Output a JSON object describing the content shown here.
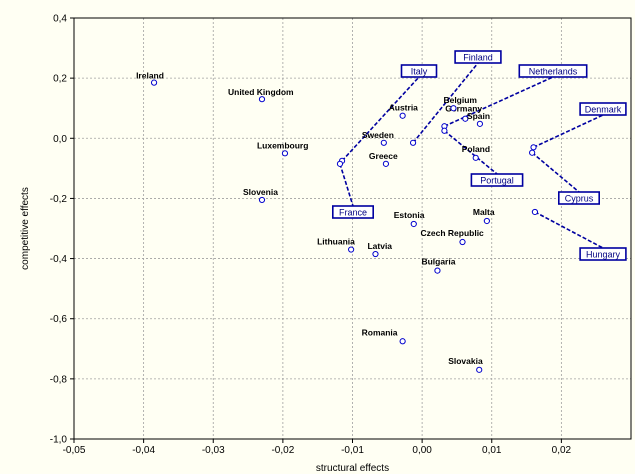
{
  "chart_data": {
    "type": "scatter",
    "xlabel": "structural effects",
    "ylabel": "competitive effects",
    "xlim": [
      -0.05,
      0.03
    ],
    "ylim": [
      -1.0,
      0.4
    ],
    "x_ticks": [
      "-0,05",
      "-0,04",
      "-0,03",
      "-0,02",
      "-0,01",
      "0,00",
      "0,01",
      "0,02"
    ],
    "y_ticks": [
      "0,4",
      "0,2",
      "0,0",
      "-0,2",
      "-0,4",
      "-0,6",
      "-0,8",
      "-1,0"
    ],
    "grid": true,
    "colors": {
      "point": "#0000cc",
      "callout": "#0000a0",
      "background": "#fffff3"
    },
    "points": [
      {
        "label": "Ireland",
        "x": -0.0385,
        "y": 0.185
      },
      {
        "label": "United Kingdom",
        "x": -0.023,
        "y": 0.13
      },
      {
        "label": "Luxembourg",
        "x": -0.0197,
        "y": -0.05
      },
      {
        "label": "Slovenia",
        "x": -0.023,
        "y": -0.205
      },
      {
        "label": "Austria",
        "x": -0.0028,
        "y": 0.075
      },
      {
        "label": "Sweden",
        "x": -0.0055,
        "y": -0.015
      },
      {
        "label": "Greece",
        "x": -0.0052,
        "y": -0.085
      },
      {
        "label": "Germany",
        "x": 0.0062,
        "y": 0.065
      },
      {
        "label": "Belgium",
        "x": 0.0045,
        "y": 0.1
      },
      {
        "label": "Spain",
        "x": 0.0083,
        "y": 0.048
      },
      {
        "label": "Poland",
        "x": 0.0077,
        "y": -0.065
      },
      {
        "label": "Estonia",
        "x": -0.0012,
        "y": -0.285
      },
      {
        "label": "Malta",
        "x": 0.0093,
        "y": -0.275
      },
      {
        "label": "Czech Republic",
        "x": 0.0058,
        "y": -0.345
      },
      {
        "label": "Lithuania",
        "x": -0.0102,
        "y": -0.37
      },
      {
        "label": "Latvia",
        "x": -0.0067,
        "y": -0.385
      },
      {
        "label": "Bulgaria",
        "x": 0.0022,
        "y": -0.44
      },
      {
        "label": "Romania",
        "x": -0.0028,
        "y": -0.675
      },
      {
        "label": "Slovakia",
        "x": 0.0082,
        "y": -0.77
      }
    ],
    "callouts": [
      {
        "label": "Italy",
        "x": -0.0115,
        "y": -0.075,
        "anchor": "top"
      },
      {
        "label": "France",
        "x": -0.0118,
        "y": -0.085,
        "anchor": "bottom"
      },
      {
        "label": "Finland",
        "x": -0.0013,
        "y": -0.015,
        "anchor": "top"
      },
      {
        "label": "Netherlands",
        "x": 0.0032,
        "y": 0.04,
        "anchor": "top"
      },
      {
        "label": "Portugal",
        "x": 0.0032,
        "y": 0.025,
        "anchor": "bottom"
      },
      {
        "label": "Denmark",
        "x": 0.016,
        "y": -0.03,
        "anchor": "top"
      },
      {
        "label": "Cyprus",
        "x": 0.0158,
        "y": -0.048,
        "anchor": "bottom"
      },
      {
        "label": "Hungary",
        "x": 0.0162,
        "y": -0.245,
        "anchor": "bottom"
      }
    ]
  }
}
